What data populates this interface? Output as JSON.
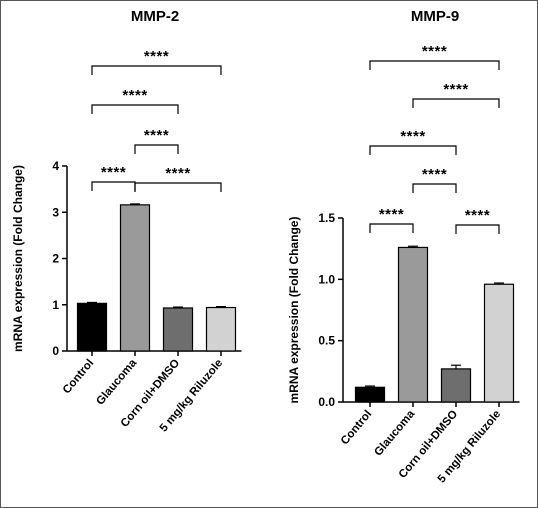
{
  "chart_data": [
    {
      "type": "bar",
      "title": "MMP-2",
      "ylabel": "mRNA expression (Fold Change)",
      "xlabel": "",
      "categories": [
        "Control",
        "Glaucoma",
        "Corn oil+DMSO",
        "5 mg/kg Riluzole"
      ],
      "values": [
        1.03,
        3.16,
        0.93,
        0.94
      ],
      "errors": [
        0.02,
        0.02,
        0.02,
        0.02
      ],
      "colors": [
        "#000000",
        "#9a9a9a",
        "#6e6e6e",
        "#d2d2d2"
      ],
      "ylim": [
        0,
        4
      ],
      "yticks": [
        "0",
        "1",
        "2",
        "3",
        "4"
      ],
      "significance": [
        {
          "from": 0,
          "to": 1,
          "label": "****"
        },
        {
          "from": 1,
          "to": 3,
          "label": "****"
        },
        {
          "from": 1,
          "to": 2,
          "label": "****"
        },
        {
          "from": 0,
          "to": 2,
          "label": "****"
        },
        {
          "from": 0,
          "to": 3,
          "label": "****"
        }
      ]
    },
    {
      "type": "bar",
      "title": "MMP-9",
      "ylabel": "mRNA expression (Fold Change)",
      "xlabel": "",
      "categories": [
        "Control",
        "Glaucoma",
        "Corn oil+DMSO",
        "5 mg/kg Riluzole"
      ],
      "values": [
        0.12,
        1.26,
        0.27,
        0.96
      ],
      "errors": [
        0.01,
        0.01,
        0.03,
        0.01
      ],
      "colors": [
        "#000000",
        "#9a9a9a",
        "#6e6e6e",
        "#d2d2d2"
      ],
      "ylim": [
        0,
        1.5
      ],
      "yticks": [
        "0.0",
        "0.5",
        "1.0",
        "1.5"
      ],
      "significance": [
        {
          "from": 0,
          "to": 1,
          "label": "****"
        },
        {
          "from": 2,
          "to": 3,
          "label": "****"
        },
        {
          "from": 1,
          "to": 2,
          "label": "****"
        },
        {
          "from": 0,
          "to": 2,
          "label": "****"
        },
        {
          "from": 1,
          "to": 3,
          "label": "****"
        },
        {
          "from": 0,
          "to": 3,
          "label": "****"
        }
      ]
    }
  ]
}
